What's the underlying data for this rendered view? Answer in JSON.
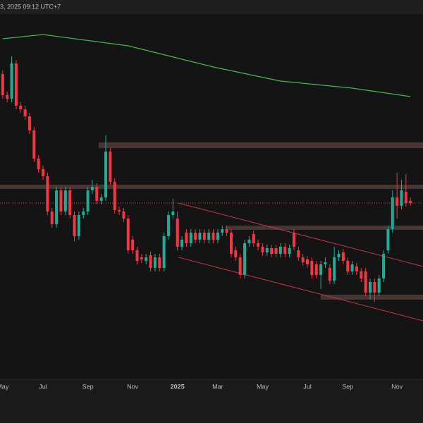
{
  "header": {
    "timestamp": "3, 2025 09:12 UTC+7"
  },
  "chart_data": {
    "type": "candlestick",
    "up_color": "#22ab94",
    "down_color": "#f23645",
    "ylim": [
      0,
      600
    ],
    "xlim": [
      -0.6,
      93.8
    ],
    "xticks": [
      {
        "value": 0,
        "label": "May"
      },
      {
        "value": 9,
        "label": "Jul"
      },
      {
        "value": 19,
        "label": "Sep"
      },
      {
        "value": 29,
        "label": "Nov"
      },
      {
        "value": 39,
        "label": "2025"
      },
      {
        "value": 48,
        "label": "Mar"
      },
      {
        "value": 58,
        "label": "May"
      },
      {
        "value": 68,
        "label": "Jul"
      },
      {
        "value": 77,
        "label": "Sep"
      },
      {
        "value": 88,
        "label": "Nov"
      }
    ],
    "candles": [
      [
        495,
        500,
        460,
        465
      ],
      [
        465,
        470,
        455,
        460
      ],
      [
        460,
        520,
        455,
        510
      ],
      [
        510,
        515,
        445,
        450
      ],
      [
        450,
        455,
        440,
        445
      ],
      [
        445,
        450,
        430,
        435
      ],
      [
        435,
        440,
        410,
        415
      ],
      [
        415,
        420,
        370,
        375
      ],
      [
        375,
        380,
        355,
        360
      ],
      [
        360,
        365,
        345,
        350
      ],
      [
        350,
        355,
        295,
        300
      ],
      [
        300,
        305,
        277,
        282
      ],
      [
        282,
        335,
        277,
        330
      ],
      [
        330,
        335,
        295,
        300
      ],
      [
        300,
        335,
        295,
        330
      ],
      [
        330,
        335,
        290,
        295
      ],
      [
        295,
        300,
        258,
        265
      ],
      [
        265,
        300,
        260,
        295
      ],
      [
        295,
        305,
        290,
        300
      ],
      [
        300,
        335,
        295,
        330
      ],
      [
        330,
        345,
        325,
        335
      ],
      [
        335,
        340,
        310,
        315
      ],
      [
        315,
        325,
        310,
        320
      ],
      [
        320,
        408,
        315,
        385
      ],
      [
        385,
        390,
        337,
        342
      ],
      [
        342,
        347,
        297,
        302
      ],
      [
        302,
        307,
        295,
        300
      ],
      [
        300,
        305,
        285,
        290
      ],
      [
        290,
        295,
        240,
        245
      ],
      [
        260,
        265,
        240,
        245
      ],
      [
        245,
        250,
        225,
        230
      ],
      [
        235,
        240,
        227,
        232
      ],
      [
        230,
        240,
        225,
        235
      ],
      [
        238,
        243,
        215,
        220
      ],
      [
        220,
        240,
        215,
        235
      ],
      [
        235,
        240,
        215,
        220
      ],
      [
        220,
        270,
        215,
        265
      ],
      [
        265,
        300,
        260,
        295
      ],
      [
        295,
        318,
        290,
        300
      ],
      [
        290,
        300,
        245,
        250
      ],
      [
        250,
        265,
        245,
        260
      ],
      [
        270,
        275,
        250,
        255
      ],
      [
        255,
        275,
        250,
        270
      ],
      [
        270,
        275,
        255,
        260
      ],
      [
        260,
        275,
        255,
        270
      ],
      [
        270,
        275,
        255,
        260
      ],
      [
        260,
        275,
        255,
        270
      ],
      [
        270,
        275,
        255,
        260
      ],
      [
        260,
        275,
        255,
        270
      ],
      [
        270,
        280,
        265,
        275
      ],
      [
        275,
        280,
        265,
        270
      ],
      [
        270,
        275,
        235,
        240
      ],
      [
        245,
        250,
        230,
        235
      ],
      [
        235,
        240,
        205,
        210
      ],
      [
        210,
        260,
        205,
        255
      ],
      [
        255,
        265,
        250,
        260
      ],
      [
        268,
        273,
        250,
        255
      ],
      [
        255,
        260,
        245,
        250
      ],
      [
        250,
        255,
        237,
        242
      ],
      [
        242,
        253,
        237,
        248
      ],
      [
        248,
        253,
        235,
        240
      ],
      [
        248,
        253,
        235,
        240
      ],
      [
        240,
        255,
        235,
        250
      ],
      [
        250,
        255,
        235,
        240
      ],
      [
        240,
        253,
        235,
        248
      ],
      [
        270,
        275,
        245,
        250
      ],
      [
        245,
        250,
        230,
        235
      ],
      [
        235,
        240,
        223,
        228
      ],
      [
        232,
        237,
        220,
        225
      ],
      [
        230,
        235,
        205,
        210
      ],
      [
        225,
        230,
        205,
        210
      ],
      [
        210,
        230,
        190,
        225
      ],
      [
        225,
        235,
        220,
        228
      ],
      [
        220,
        225,
        197,
        202
      ],
      [
        202,
        250,
        197,
        235
      ],
      [
        235,
        245,
        230,
        240
      ],
      [
        242,
        247,
        225,
        230
      ],
      [
        230,
        235,
        210,
        215
      ],
      [
        215,
        230,
        210,
        225
      ],
      [
        222,
        227,
        210,
        215
      ],
      [
        215,
        220,
        200,
        205
      ],
      [
        215,
        220,
        180,
        185
      ],
      [
        185,
        205,
        175,
        200
      ],
      [
        200,
        205,
        172,
        185
      ],
      [
        185,
        210,
        180,
        205
      ],
      [
        205,
        245,
        200,
        240
      ],
      [
        245,
        280,
        240,
        275
      ],
      [
        275,
        330,
        270,
        320
      ],
      [
        320,
        355,
        290,
        308
      ],
      [
        308,
        345,
        303,
        330
      ],
      [
        328,
        353,
        307,
        312
      ],
      [
        315,
        320,
        308,
        312
      ]
    ],
    "moving_average": {
      "color": "#4caf50",
      "x": [
        0,
        9,
        28,
        47,
        62,
        78,
        91
      ],
      "values": [
        545,
        551,
        535,
        505,
        485,
        475,
        463
      ]
    }
  }
}
